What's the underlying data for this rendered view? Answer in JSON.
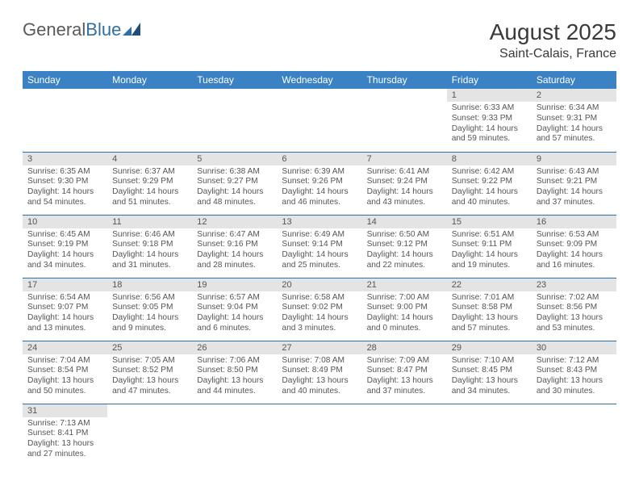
{
  "logo": {
    "part1": "General",
    "part2": "Blue"
  },
  "title": "August 2025",
  "subtitle": "Saint-Calais, France",
  "colors": {
    "header_bg": "#3b82c4",
    "header_text": "#ffffff",
    "daynum_bg": "#e4e4e4",
    "text": "#555555",
    "rule": "#2f6fa7"
  },
  "weekdays": [
    "Sunday",
    "Monday",
    "Tuesday",
    "Wednesday",
    "Thursday",
    "Friday",
    "Saturday"
  ],
  "weeks": [
    [
      null,
      null,
      null,
      null,
      null,
      {
        "n": "1",
        "sr": "Sunrise: 6:33 AM",
        "ss": "Sunset: 9:33 PM",
        "dl": "Daylight: 14 hours and 59 minutes."
      },
      {
        "n": "2",
        "sr": "Sunrise: 6:34 AM",
        "ss": "Sunset: 9:31 PM",
        "dl": "Daylight: 14 hours and 57 minutes."
      }
    ],
    [
      {
        "n": "3",
        "sr": "Sunrise: 6:35 AM",
        "ss": "Sunset: 9:30 PM",
        "dl": "Daylight: 14 hours and 54 minutes."
      },
      {
        "n": "4",
        "sr": "Sunrise: 6:37 AM",
        "ss": "Sunset: 9:29 PM",
        "dl": "Daylight: 14 hours and 51 minutes."
      },
      {
        "n": "5",
        "sr": "Sunrise: 6:38 AM",
        "ss": "Sunset: 9:27 PM",
        "dl": "Daylight: 14 hours and 48 minutes."
      },
      {
        "n": "6",
        "sr": "Sunrise: 6:39 AM",
        "ss": "Sunset: 9:26 PM",
        "dl": "Daylight: 14 hours and 46 minutes."
      },
      {
        "n": "7",
        "sr": "Sunrise: 6:41 AM",
        "ss": "Sunset: 9:24 PM",
        "dl": "Daylight: 14 hours and 43 minutes."
      },
      {
        "n": "8",
        "sr": "Sunrise: 6:42 AM",
        "ss": "Sunset: 9:22 PM",
        "dl": "Daylight: 14 hours and 40 minutes."
      },
      {
        "n": "9",
        "sr": "Sunrise: 6:43 AM",
        "ss": "Sunset: 9:21 PM",
        "dl": "Daylight: 14 hours and 37 minutes."
      }
    ],
    [
      {
        "n": "10",
        "sr": "Sunrise: 6:45 AM",
        "ss": "Sunset: 9:19 PM",
        "dl": "Daylight: 14 hours and 34 minutes."
      },
      {
        "n": "11",
        "sr": "Sunrise: 6:46 AM",
        "ss": "Sunset: 9:18 PM",
        "dl": "Daylight: 14 hours and 31 minutes."
      },
      {
        "n": "12",
        "sr": "Sunrise: 6:47 AM",
        "ss": "Sunset: 9:16 PM",
        "dl": "Daylight: 14 hours and 28 minutes."
      },
      {
        "n": "13",
        "sr": "Sunrise: 6:49 AM",
        "ss": "Sunset: 9:14 PM",
        "dl": "Daylight: 14 hours and 25 minutes."
      },
      {
        "n": "14",
        "sr": "Sunrise: 6:50 AM",
        "ss": "Sunset: 9:12 PM",
        "dl": "Daylight: 14 hours and 22 minutes."
      },
      {
        "n": "15",
        "sr": "Sunrise: 6:51 AM",
        "ss": "Sunset: 9:11 PM",
        "dl": "Daylight: 14 hours and 19 minutes."
      },
      {
        "n": "16",
        "sr": "Sunrise: 6:53 AM",
        "ss": "Sunset: 9:09 PM",
        "dl": "Daylight: 14 hours and 16 minutes."
      }
    ],
    [
      {
        "n": "17",
        "sr": "Sunrise: 6:54 AM",
        "ss": "Sunset: 9:07 PM",
        "dl": "Daylight: 14 hours and 13 minutes."
      },
      {
        "n": "18",
        "sr": "Sunrise: 6:56 AM",
        "ss": "Sunset: 9:05 PM",
        "dl": "Daylight: 14 hours and 9 minutes."
      },
      {
        "n": "19",
        "sr": "Sunrise: 6:57 AM",
        "ss": "Sunset: 9:04 PM",
        "dl": "Daylight: 14 hours and 6 minutes."
      },
      {
        "n": "20",
        "sr": "Sunrise: 6:58 AM",
        "ss": "Sunset: 9:02 PM",
        "dl": "Daylight: 14 hours and 3 minutes."
      },
      {
        "n": "21",
        "sr": "Sunrise: 7:00 AM",
        "ss": "Sunset: 9:00 PM",
        "dl": "Daylight: 14 hours and 0 minutes."
      },
      {
        "n": "22",
        "sr": "Sunrise: 7:01 AM",
        "ss": "Sunset: 8:58 PM",
        "dl": "Daylight: 13 hours and 57 minutes."
      },
      {
        "n": "23",
        "sr": "Sunrise: 7:02 AM",
        "ss": "Sunset: 8:56 PM",
        "dl": "Daylight: 13 hours and 53 minutes."
      }
    ],
    [
      {
        "n": "24",
        "sr": "Sunrise: 7:04 AM",
        "ss": "Sunset: 8:54 PM",
        "dl": "Daylight: 13 hours and 50 minutes."
      },
      {
        "n": "25",
        "sr": "Sunrise: 7:05 AM",
        "ss": "Sunset: 8:52 PM",
        "dl": "Daylight: 13 hours and 47 minutes."
      },
      {
        "n": "26",
        "sr": "Sunrise: 7:06 AM",
        "ss": "Sunset: 8:50 PM",
        "dl": "Daylight: 13 hours and 44 minutes."
      },
      {
        "n": "27",
        "sr": "Sunrise: 7:08 AM",
        "ss": "Sunset: 8:49 PM",
        "dl": "Daylight: 13 hours and 40 minutes."
      },
      {
        "n": "28",
        "sr": "Sunrise: 7:09 AM",
        "ss": "Sunset: 8:47 PM",
        "dl": "Daylight: 13 hours and 37 minutes."
      },
      {
        "n": "29",
        "sr": "Sunrise: 7:10 AM",
        "ss": "Sunset: 8:45 PM",
        "dl": "Daylight: 13 hours and 34 minutes."
      },
      {
        "n": "30",
        "sr": "Sunrise: 7:12 AM",
        "ss": "Sunset: 8:43 PM",
        "dl": "Daylight: 13 hours and 30 minutes."
      }
    ],
    [
      {
        "n": "31",
        "sr": "Sunrise: 7:13 AM",
        "ss": "Sunset: 8:41 PM",
        "dl": "Daylight: 13 hours and 27 minutes."
      },
      null,
      null,
      null,
      null,
      null,
      null
    ]
  ]
}
